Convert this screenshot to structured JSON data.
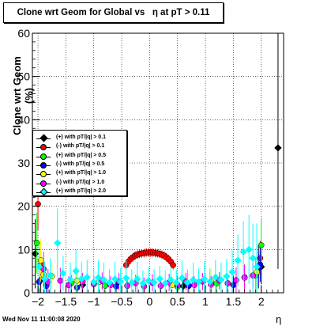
{
  "title": "Clone wrt Geom for Global vs   η at pT > 0.11",
  "ylabel": "Clone wrt Geom (%)",
  "xlabel": "η",
  "timestamp": "Wed Nov 11 11:00:08 2020",
  "legend": [
    {
      "label": "(+) with pT/|q| > 0.1",
      "color": "#000000",
      "marker": "diamond"
    },
    {
      "label": "(-) with pT/|q| > 0.1",
      "color": "#ff0000",
      "marker": "circle"
    },
    {
      "label": "(+) with pT/|q| > 0.5",
      "color": "#00ff00",
      "marker": "circle"
    },
    {
      "label": "(-) with pT/|q| > 0.5",
      "color": "#0000ff",
      "marker": "circle"
    },
    {
      "label": "(+) with pT/|q| > 1.0",
      "color": "#ffff00",
      "marker": "circle"
    },
    {
      "label": "(-) with pT/|q| > 1.0",
      "color": "#ff00ff",
      "marker": "circle"
    },
    {
      "label": "(+) with pT/|q| > 2.0",
      "color": "#00ffff",
      "marker": "diamond"
    }
  ],
  "chart_data": {
    "type": "scatter",
    "title": "Clone wrt Geom for Global vs   η at pT > 0.11",
    "xlabel": "η",
    "ylabel": "Clone wrt Geom (%)",
    "xlim": [
      -2.1,
      2.4
    ],
    "ylim": [
      0,
      60
    ],
    "xticks": [
      -2,
      -1.5,
      -1,
      -0.5,
      0,
      0.5,
      1,
      1.5,
      2
    ],
    "xtick_labels": [
      "−2",
      "−1.5",
      "−1",
      "−0.5",
      "0",
      "0.5",
      "1",
      "1.5",
      "2"
    ],
    "yticks": [
      0,
      10,
      20,
      30,
      40,
      50,
      60
    ],
    "grid": true,
    "legend_position": "left-center",
    "series": [
      {
        "color": "#000000",
        "marker": "diamond",
        "points": [
          [
            -2.05,
            9.0,
            8
          ],
          [
            -1.95,
            3.0,
            3
          ],
          [
            -1.2,
            1.8,
            2
          ],
          [
            0.6,
            1.5,
            2
          ],
          [
            1.95,
            6.0,
            5
          ],
          [
            2.0,
            6.0,
            4
          ],
          [
            2.3,
            33.5,
            28
          ]
        ]
      },
      {
        "color": "#ff0000",
        "marker": "circle",
        "points": [
          [
            -2.0,
            20.5,
            6
          ],
          [
            -1.95,
            6.5,
            4
          ],
          [
            -0.42,
            6.4,
            1
          ],
          [
            -0.38,
            7.2,
            1
          ],
          [
            -0.34,
            7.8,
            1
          ],
          [
            -0.3,
            8.2,
            1
          ],
          [
            -0.26,
            8.6,
            1
          ],
          [
            -0.22,
            8.8,
            1
          ],
          [
            -0.18,
            9.0,
            1
          ],
          [
            -0.14,
            9.1,
            1
          ],
          [
            -0.1,
            9.2,
            1
          ],
          [
            -0.06,
            9.3,
            1
          ],
          [
            -0.02,
            9.3,
            1
          ],
          [
            0.02,
            9.3,
            1
          ],
          [
            0.06,
            9.3,
            1
          ],
          [
            0.1,
            9.2,
            1
          ],
          [
            0.14,
            9.1,
            1
          ],
          [
            0.18,
            9.0,
            1
          ],
          [
            0.22,
            8.8,
            1
          ],
          [
            0.26,
            8.6,
            1
          ],
          [
            0.3,
            8.2,
            1
          ],
          [
            0.34,
            7.8,
            1
          ],
          [
            0.38,
            7.2,
            1
          ],
          [
            0.42,
            6.4,
            1
          ],
          [
            1.98,
            8.0,
            4
          ]
        ]
      },
      {
        "color": "#00ff00",
        "marker": "circle",
        "points": [
          [
            -2.02,
            11.5,
            7
          ],
          [
            -1.9,
            3.5,
            3
          ],
          [
            -1.4,
            2.2,
            2
          ],
          [
            -0.8,
            1.6,
            2
          ],
          [
            0.5,
            1.4,
            2
          ],
          [
            1.2,
            2.2,
            2
          ],
          [
            1.9,
            4.0,
            4
          ],
          [
            2.0,
            11.0,
            6
          ]
        ]
      },
      {
        "color": "#0000ff",
        "marker": "circle",
        "points": [
          [
            -1.98,
            2.5,
            3
          ],
          [
            -1.85,
            1.6,
            2
          ],
          [
            -1.3,
            1.2,
            2
          ],
          [
            -0.6,
            1.5,
            1
          ],
          [
            0.7,
            1.6,
            1
          ],
          [
            1.5,
            1.8,
            2
          ],
          [
            1.95,
            5.5,
            4
          ],
          [
            1.98,
            6.5,
            4
          ]
        ]
      },
      {
        "color": "#ffff00",
        "marker": "circle",
        "points": [
          [
            -1.95,
            7.5,
            5
          ],
          [
            -1.9,
            4.2,
            4
          ],
          [
            -1.75,
            3.8,
            3
          ],
          [
            -1.3,
            2.8,
            3
          ],
          [
            -0.9,
            2.5,
            2
          ],
          [
            0.4,
            1.8,
            2
          ],
          [
            1.1,
            2.6,
            3
          ],
          [
            1.7,
            3.6,
            3
          ],
          [
            1.92,
            4.8,
            4
          ]
        ]
      },
      {
        "color": "#ff00ff",
        "marker": "circle",
        "points": [
          [
            -1.9,
            5.5,
            4
          ],
          [
            -1.82,
            2.5,
            3
          ],
          [
            -1.6,
            2.8,
            3
          ],
          [
            -1.45,
            1.8,
            2
          ],
          [
            -1.2,
            2.6,
            2
          ],
          [
            -1.0,
            2.0,
            2
          ],
          [
            -0.85,
            2.7,
            2
          ],
          [
            -0.7,
            1.8,
            2
          ],
          [
            -0.55,
            2.6,
            2
          ],
          [
            -0.4,
            1.6,
            2
          ],
          [
            -0.25,
            2.2,
            2
          ],
          [
            -0.1,
            1.5,
            2
          ],
          [
            0.05,
            2.3,
            2
          ],
          [
            0.2,
            1.6,
            2
          ],
          [
            0.35,
            2.4,
            2
          ],
          [
            0.5,
            1.8,
            2
          ],
          [
            0.65,
            2.6,
            2
          ],
          [
            0.8,
            1.8,
            2
          ],
          [
            0.95,
            2.6,
            2
          ],
          [
            1.1,
            1.9,
            2
          ],
          [
            1.25,
            2.8,
            2
          ],
          [
            1.4,
            2.2,
            2
          ],
          [
            1.55,
            2.9,
            3
          ],
          [
            1.7,
            3.5,
            3
          ],
          [
            1.85,
            4.0,
            3
          ]
        ]
      },
      {
        "color": "#00ffff",
        "marker": "diamond",
        "points": [
          [
            -1.98,
            6.0,
            5
          ],
          [
            -1.88,
            3.2,
            4
          ],
          [
            -1.78,
            4.0,
            4
          ],
          [
            -1.65,
            11.5,
            8
          ],
          [
            -1.55,
            4.5,
            4
          ],
          [
            -1.42,
            3.0,
            4
          ],
          [
            -1.32,
            5.0,
            5
          ],
          [
            -1.22,
            3.2,
            4
          ],
          [
            -1.12,
            3.6,
            4
          ],
          [
            -1.0,
            2.5,
            3
          ],
          [
            -0.92,
            3.5,
            4
          ],
          [
            -0.82,
            3.0,
            4
          ],
          [
            -0.72,
            2.4,
            3
          ],
          [
            -0.62,
            3.2,
            4
          ],
          [
            -0.52,
            2.6,
            3
          ],
          [
            -0.42,
            3.4,
            4
          ],
          [
            -0.32,
            2.4,
            3
          ],
          [
            -0.22,
            3.2,
            4
          ],
          [
            -0.12,
            2.2,
            3
          ],
          [
            -0.02,
            2.8,
            3
          ],
          [
            0.08,
            2.4,
            3
          ],
          [
            0.18,
            3.2,
            3
          ],
          [
            0.28,
            2.2,
            3
          ],
          [
            0.38,
            3.0,
            3
          ],
          [
            0.48,
            2.4,
            3
          ],
          [
            0.58,
            3.4,
            4
          ],
          [
            0.68,
            2.4,
            3
          ],
          [
            0.78,
            3.0,
            4
          ],
          [
            0.88,
            2.6,
            3
          ],
          [
            0.98,
            3.2,
            4
          ],
          [
            1.08,
            2.6,
            3
          ],
          [
            1.18,
            3.6,
            4
          ],
          [
            1.28,
            3.0,
            4
          ],
          [
            1.38,
            3.8,
            4
          ],
          [
            1.48,
            4.8,
            5
          ],
          [
            1.58,
            7.5,
            6
          ],
          [
            1.68,
            9.5,
            7
          ],
          [
            1.78,
            10.0,
            8
          ],
          [
            1.85,
            8.0,
            8
          ],
          [
            1.92,
            6.0,
            10
          ]
        ]
      }
    ]
  }
}
